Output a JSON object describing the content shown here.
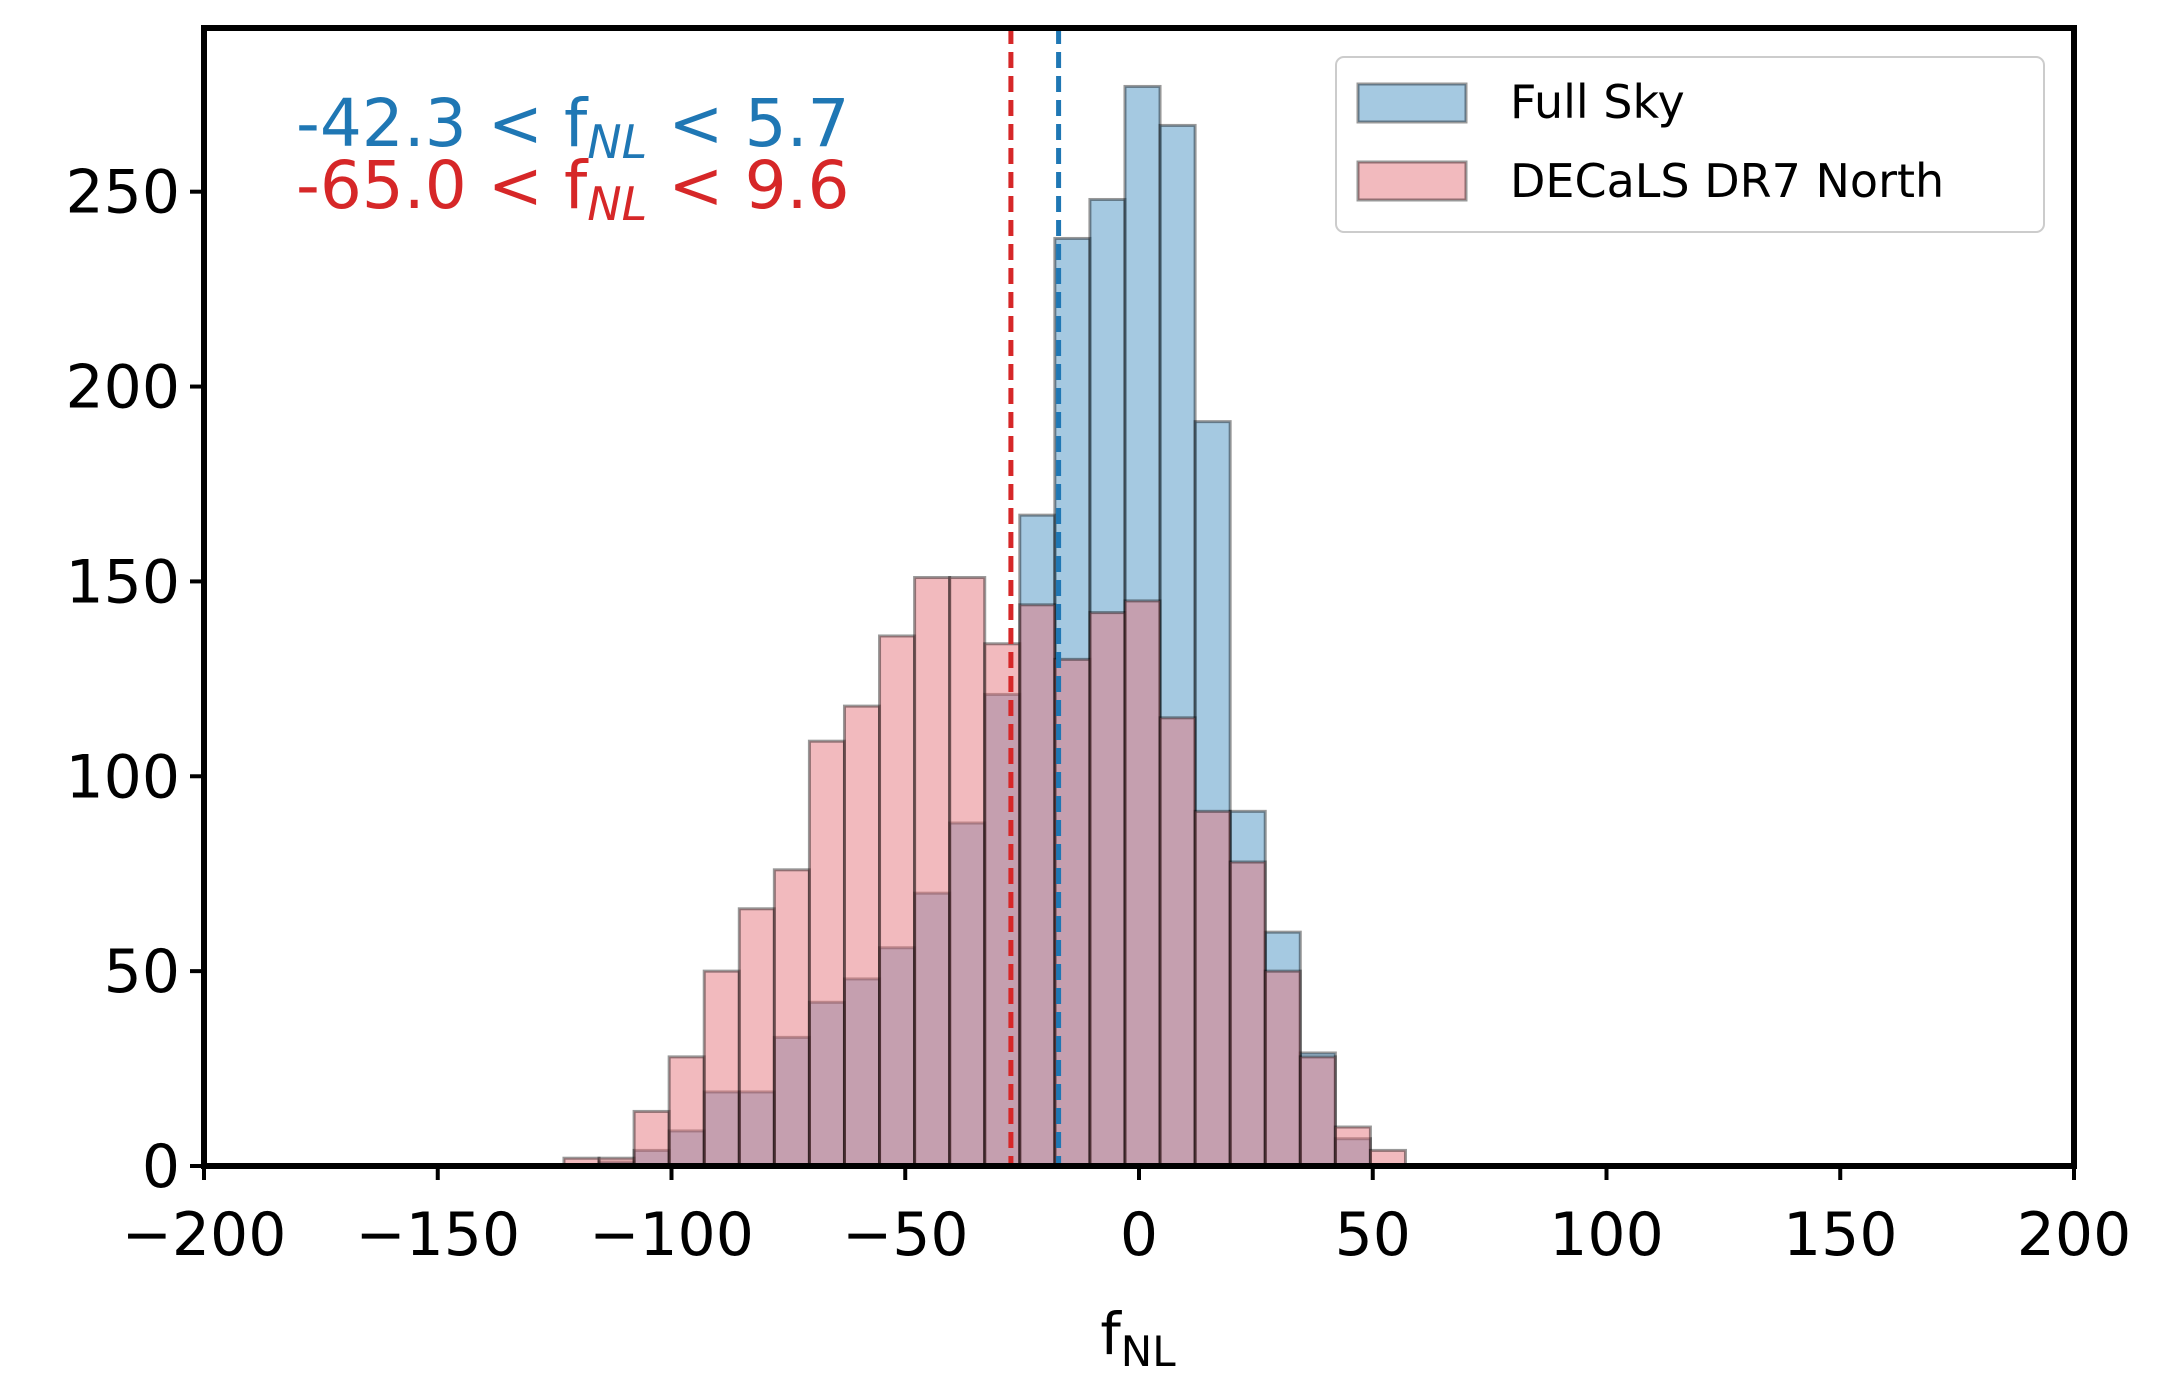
{
  "chart_data": {
    "type": "bar",
    "xlabel": "f",
    "xlabel_sub": "NL",
    "ylabel": "",
    "xlim": [
      -200,
      200
    ],
    "ylim": [
      0,
      292
    ],
    "xticks": [
      -200,
      -150,
      -100,
      -50,
      0,
      50,
      100,
      150,
      200
    ],
    "xtick_labels": [
      "−200",
      "−150",
      "−100",
      "−50",
      "0",
      "50",
      "100",
      "150",
      "200"
    ],
    "yticks": [
      0,
      50,
      100,
      150,
      200,
      250
    ],
    "ytick_labels": [
      "0",
      "50",
      "100",
      "150",
      "200",
      "250"
    ],
    "grid": false,
    "legend_position": "top-right",
    "bins": [
      -123,
      -115.5,
      -108,
      -100.5,
      -93,
      -85.5,
      -78,
      -70.5,
      -63,
      -55.5,
      -48,
      -40.5,
      -33,
      -25.5,
      -18,
      -10.5,
      -3,
      4.5,
      12,
      19.5,
      27,
      34.5,
      42,
      49.5,
      57
    ],
    "series": [
      {
        "name": "Full Sky",
        "color": "#1f77b4",
        "counts": [
          0,
          1,
          4,
          9,
          19,
          19,
          33,
          42,
          48,
          56,
          70,
          88,
          121,
          167,
          238,
          248,
          277,
          267,
          191,
          91,
          60,
          29,
          7,
          0
        ]
      },
      {
        "name": "DECaLS DR7 North",
        "color": "#e377c2",
        "fill": "#f0b3b8",
        "counts": [
          2,
          2,
          14,
          28,
          50,
          66,
          76,
          109,
          118,
          136,
          151,
          151,
          134,
          144,
          130,
          142,
          145,
          115,
          91,
          78,
          50,
          28,
          10,
          4
        ]
      }
    ],
    "vlines": [
      {
        "x": -27.4,
        "color": "#d62728",
        "style": "dashed"
      },
      {
        "x": -17.2,
        "color": "#1f77b4",
        "style": "dashed"
      }
    ],
    "annotations": [
      {
        "prefix": "-42.3 < f",
        "sub": "NL",
        "suffix": " < 5.7",
        "color": "#1f77b4"
      },
      {
        "prefix": "-65.0 < f",
        "sub": "NL",
        "suffix": " < 9.6",
        "color": "#d62728"
      }
    ]
  }
}
